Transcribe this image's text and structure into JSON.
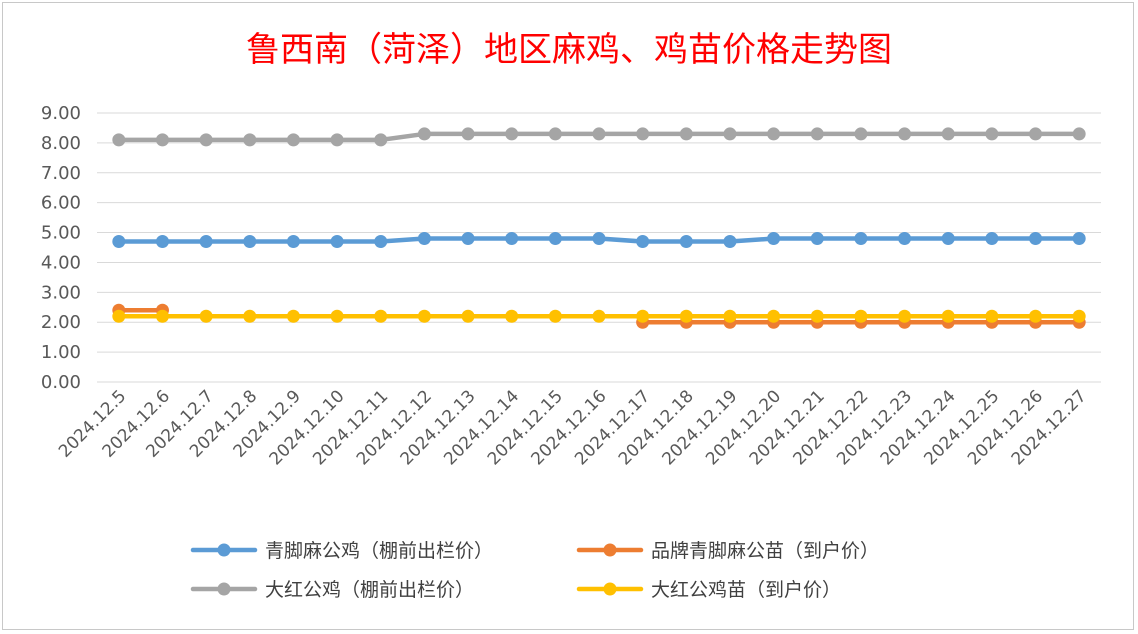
{
  "chart_data": {
    "type": "line",
    "title": "鲁西南（菏泽）地区麻鸡、鸡苗价格走势图",
    "xlabel": "",
    "ylabel": "",
    "ylim": [
      0,
      9
    ],
    "y_ticks": [
      "0.00",
      "1.00",
      "2.00",
      "3.00",
      "4.00",
      "5.00",
      "6.00",
      "7.00",
      "8.00",
      "9.00"
    ],
    "categories": [
      "2024.12.5",
      "2024.12.6",
      "2024.12.7",
      "2024.12.8",
      "2024.12.9",
      "2024.12.10",
      "2024.12.11",
      "2024.12.12",
      "2024.12.13",
      "2024.12.14",
      "2024.12.15",
      "2024.12.16",
      "2024.12.17",
      "2024.12.18",
      "2024.12.19",
      "2024.12.20",
      "2024.12.21",
      "2024.12.22",
      "2024.12.23",
      "2024.12.24",
      "2024.12.25",
      "2024.12.26",
      "2024.12.27"
    ],
    "grid": true,
    "legend_position": "bottom",
    "series": [
      {
        "name": "青脚麻公鸡（棚前出栏价）",
        "color": "#5b9bd5",
        "values": [
          4.7,
          4.7,
          4.7,
          4.7,
          4.7,
          4.7,
          4.7,
          4.8,
          4.8,
          4.8,
          4.8,
          4.8,
          4.7,
          4.7,
          4.7,
          4.8,
          4.8,
          4.8,
          4.8,
          4.8,
          4.8,
          4.8,
          4.8
        ]
      },
      {
        "name": "品牌青脚麻公苗（到户价）",
        "color": "#ed7d31",
        "values": [
          2.4,
          2.4,
          null,
          null,
          null,
          null,
          null,
          null,
          null,
          null,
          null,
          null,
          2.0,
          2.0,
          2.0,
          2.0,
          2.0,
          2.0,
          2.0,
          2.0,
          2.0,
          2.0,
          2.0
        ]
      },
      {
        "name": "大红公鸡（棚前出栏价）",
        "color": "#a5a5a5",
        "values": [
          8.1,
          8.1,
          8.1,
          8.1,
          8.1,
          8.1,
          8.1,
          8.3,
          8.3,
          8.3,
          8.3,
          8.3,
          8.3,
          8.3,
          8.3,
          8.3,
          8.3,
          8.3,
          8.3,
          8.3,
          8.3,
          8.3,
          8.3
        ]
      },
      {
        "name": "大红公鸡苗（到户价）",
        "color": "#ffc000",
        "values": [
          2.2,
          2.2,
          2.2,
          2.2,
          2.2,
          2.2,
          2.2,
          2.2,
          2.2,
          2.2,
          2.2,
          2.2,
          2.2,
          2.2,
          2.2,
          2.2,
          2.2,
          2.2,
          2.2,
          2.2,
          2.2,
          2.2,
          2.2
        ]
      }
    ]
  }
}
